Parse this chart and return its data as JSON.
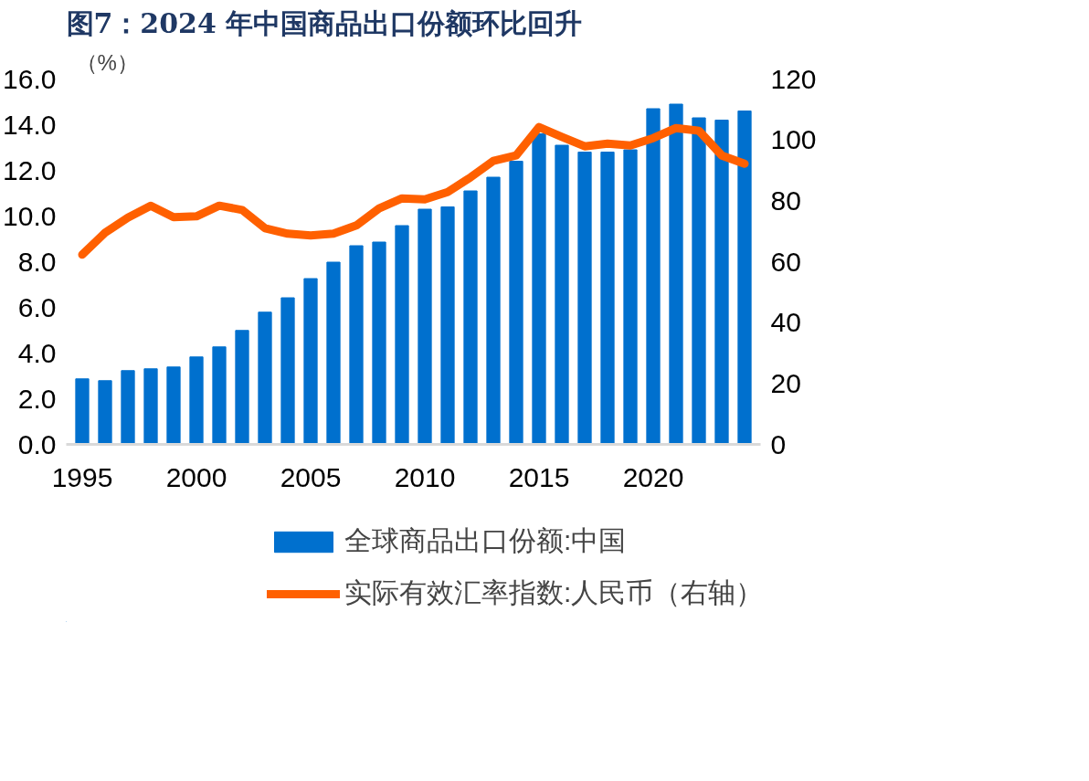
{
  "chart_data": {
    "type": "bar",
    "title": "图7：2024 年中国商品出口份额环比回升",
    "ylabel": "（%）",
    "x": [
      1995,
      1996,
      1997,
      1998,
      1999,
      2000,
      2001,
      2002,
      2003,
      2004,
      2005,
      2006,
      2007,
      2008,
      2009,
      2010,
      2011,
      2012,
      2013,
      2014,
      2015,
      2016,
      2017,
      2018,
      2019,
      2020,
      2021,
      2022,
      2023,
      2024
    ],
    "xlim": [
      1994.3,
      2024.7
    ],
    "xticks": [
      1995,
      2000,
      2005,
      2010,
      2015,
      2020
    ],
    "ylim": [
      0,
      16
    ],
    "yticks": [
      {
        "value": 0,
        "label": "0.0"
      },
      {
        "value": 2,
        "label": "2.0"
      },
      {
        "value": 4,
        "label": "4.0"
      },
      {
        "value": 6,
        "label": "6.0"
      },
      {
        "value": 8,
        "label": "8.0"
      },
      {
        "value": 10,
        "label": "10.0"
      },
      {
        "value": 12,
        "label": "12.0"
      },
      {
        "value": 14,
        "label": "14.0"
      },
      {
        "value": 16,
        "label": "16.0"
      }
    ],
    "y2lim": [
      0,
      120
    ],
    "y2ticks": [
      0,
      20,
      40,
      60,
      80,
      100,
      120
    ],
    "grid": false,
    "legend": "bottom",
    "series": [
      {
        "name": "全球商品出口份额:中国",
        "color": "#0070ce",
        "values": [
          2.87,
          2.79,
          3.23,
          3.31,
          3.39,
          3.83,
          4.27,
          4.99,
          5.79,
          6.42,
          7.26,
          7.98,
          8.7,
          8.86,
          9.58,
          10.3,
          10.4,
          11.1,
          11.7,
          12.4,
          13.6,
          13.1,
          12.8,
          12.8,
          12.9,
          14.7,
          14.9,
          14.3,
          14.2,
          14.6
        ]
      },
      {
        "name": "实际有效汇率指数:人民币（右轴）",
        "type": "line",
        "axis": "y2",
        "color": "#ff6000",
        "values": [
          62.3,
          69.5,
          74.5,
          78.4,
          74.6,
          74.9,
          78.4,
          77.0,
          71.0,
          69.2,
          68.6,
          69.2,
          71.9,
          77.5,
          80.8,
          80.5,
          82.9,
          87.7,
          93.1,
          94.9,
          104.2,
          101.0,
          97.9,
          98.8,
          98.2,
          100.6,
          103.9,
          103.0,
          94.9,
          92.2
        ]
      }
    ]
  }
}
